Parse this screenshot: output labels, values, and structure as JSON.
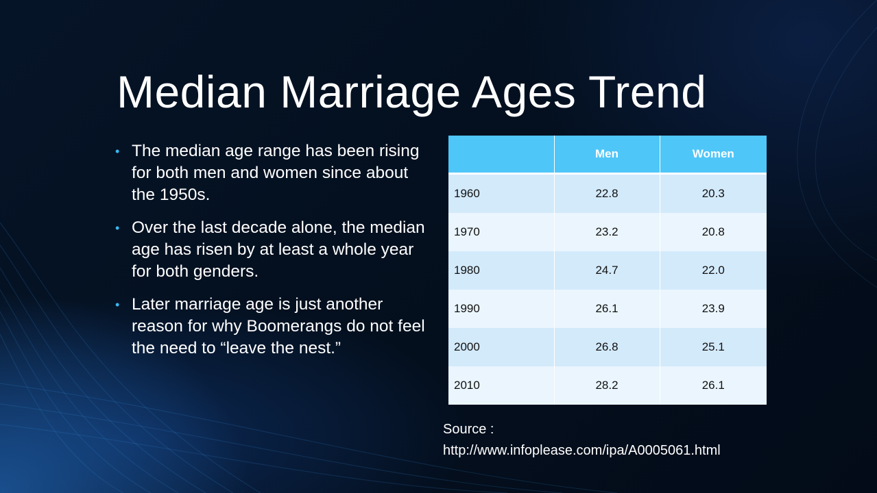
{
  "slide": {
    "title": "Median Marriage Ages Trend",
    "bullets": [
      "The median age range has been rising for both men and women since about the 1950s.",
      "Over the last decade alone, the median age has risen by at least a whole year for both genders.",
      "Later marriage age is just another reason for why Boomerangs do not feel the need to “leave the nest.”"
    ],
    "bullet_color": "#39b8ee",
    "table": {
      "headers": [
        "",
        "Men",
        "Women"
      ],
      "rows": [
        [
          "1960",
          "22.8",
          "20.3"
        ],
        [
          "1970",
          "23.2",
          "20.8"
        ],
        [
          "1980",
          "24.7",
          "22.0"
        ],
        [
          "1990",
          "26.1",
          "23.9"
        ],
        [
          "2000",
          "26.8",
          "25.1"
        ],
        [
          "2010",
          "28.2",
          "26.1"
        ]
      ],
      "header_color": "#4fc6f8"
    },
    "source": {
      "label": "Source :",
      "url": "http://www.infoplease.com/ipa/A0005061.html"
    }
  }
}
